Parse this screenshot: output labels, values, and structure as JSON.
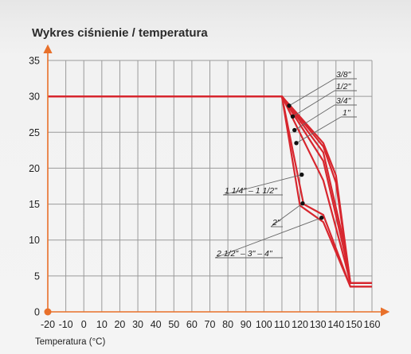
{
  "chart_data": {
    "type": "line",
    "title": "Wykres ciśnienie / temperatura",
    "xlabel": "Temperatura (°C)",
    "ylabel": "",
    "xlim": [
      -20,
      160
    ],
    "ylim": [
      0,
      35
    ],
    "x_ticks": [
      "-20",
      "-10",
      "0",
      "10",
      "20",
      "30",
      "40",
      "50",
      "60",
      "70",
      "80",
      "90",
      "100",
      "110",
      "120",
      "130",
      "140",
      "150",
      "160"
    ],
    "y_ticks": [
      "0",
      "5",
      "10",
      "15",
      "20",
      "25",
      "30",
      "35"
    ],
    "grid": true,
    "colors": {
      "series": "#d7262e",
      "axis": "#e8702a",
      "grid": "#9a9a9a",
      "annotation_line": "#666666",
      "marker": "#111111"
    },
    "series": [
      {
        "name": "3/8\"",
        "x": [
          -20,
          110,
          133,
          140,
          148,
          160
        ],
        "y": [
          30,
          30,
          23.5,
          19,
          4,
          4
        ]
      },
      {
        "name": "1/2\"",
        "x": [
          -20,
          110,
          133,
          140,
          148,
          160
        ],
        "y": [
          30,
          30,
          23,
          18,
          4,
          4
        ]
      },
      {
        "name": "3/4\"",
        "x": [
          -20,
          110,
          133,
          145,
          148,
          160
        ],
        "y": [
          30,
          30,
          22.2,
          9,
          4,
          4
        ]
      },
      {
        "name": "1\"",
        "x": [
          -20,
          110,
          133,
          145,
          148,
          160
        ],
        "y": [
          30,
          30,
          21,
          8,
          4,
          4
        ]
      },
      {
        "name": "1 1/4\" – 1 1/2\"",
        "x": [
          -20,
          110,
          133,
          145,
          148,
          160
        ],
        "y": [
          30,
          30,
          18.3,
          7,
          4,
          4
        ]
      },
      {
        "name": "2\"",
        "x": [
          -20,
          110,
          122,
          133,
          148,
          160
        ],
        "y": [
          30,
          30,
          15,
          13.5,
          3.5,
          3.5
        ]
      },
      {
        "name": "2 1/2\" – 3\" – 4\"",
        "x": [
          -20,
          110,
          120,
          133,
          148,
          160
        ],
        "y": [
          30,
          30,
          14.8,
          12.5,
          3.5,
          3.5
        ]
      }
    ],
    "annotations": [
      {
        "text": "3/8\"",
        "point": [
          114,
          28.7
        ]
      },
      {
        "text": "1/2\"",
        "point": [
          116,
          27.2
        ]
      },
      {
        "text": "3/4\"",
        "point": [
          117,
          25.3
        ]
      },
      {
        "text": "1\"",
        "point": [
          118,
          23.5
        ]
      },
      {
        "text": "1 1/4\" – 1 1/2\"",
        "point": [
          121,
          19.1
        ]
      },
      {
        "text": "2\"",
        "point": [
          121.5,
          15.1
        ]
      },
      {
        "text": "2 1/2\" – 3\" – 4\"",
        "point": [
          132,
          13.1
        ]
      }
    ]
  }
}
